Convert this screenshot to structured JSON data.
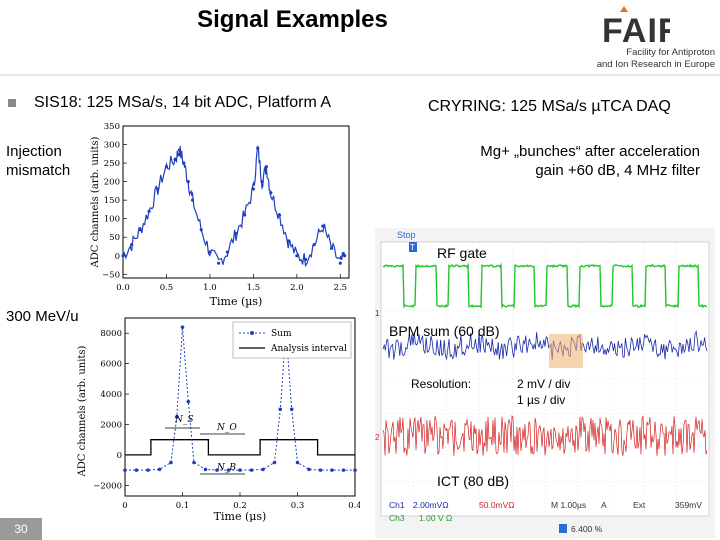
{
  "header": {
    "title": "Signal Examples",
    "logo_text": "FAIR",
    "tagline_1": "Facility for Antiproton",
    "tagline_2": "and Ion Research in Europe"
  },
  "left": {
    "heading": "SIS18: 125 MSa/s, 14 bit ADC, Platform A",
    "label_1a": "Injection",
    "label_1b": "mismatch",
    "label_2": "300 MeV/u"
  },
  "right": {
    "heading": "CRYRING: 125 MSa/s µTCA DAQ",
    "line_1": "Mg+ „bunches“ after acceleration",
    "line_2": "gain +60 dB, 4 MHz filter",
    "scope": {
      "stop": "Stop",
      "rf_gate": "RF gate",
      "bpm_sum": "BPM sum (60 dB)",
      "resolution_label": "Resolution:",
      "resolution_v": "2 mV / div",
      "resolution_t": "1 µs / div",
      "ict": "ICT (80 dB)",
      "ch1": "Ch1",
      "ch1_val": "2.00mVΩ",
      "ch2_val": "50.0mVΩ",
      "m_val": "M 1.00µs",
      "a_val": "A",
      "ext": "Ext",
      "freq": "359mV",
      "ch3": "Ch3",
      "ch3_val": "1.00 V Ω",
      "pct": "6.400 %",
      "marker_1": "1",
      "marker_2": "2",
      "marker_T": "T"
    }
  },
  "page_number": "30",
  "chart_data": [
    {
      "type": "line",
      "title": "",
      "xlabel": "Time (µs)",
      "ylabel": "ADC channels (arb. units)",
      "xlim": [
        0.0,
        2.6
      ],
      "ylim": [
        -60,
        350
      ],
      "xticks": [
        "0.0",
        "0.5",
        "1.0",
        "1.5",
        "2.0",
        "2.5"
      ],
      "yticks": [
        "−50",
        "0",
        "50",
        "100",
        "150",
        "200",
        "250",
        "300",
        "350"
      ],
      "series": [
        {
          "color": "#1f3fbf",
          "x": [
            0.0,
            0.1,
            0.2,
            0.3,
            0.4,
            0.5,
            0.6,
            0.65,
            0.7,
            0.75,
            0.8,
            0.9,
            1.0,
            1.1,
            1.2,
            1.3,
            1.4,
            1.5,
            1.55,
            1.6,
            1.65,
            1.7,
            1.8,
            1.9,
            2.0,
            2.1,
            2.2,
            2.3,
            2.4,
            2.5,
            2.55
          ],
          "values": [
            0,
            30,
            70,
            120,
            180,
            240,
            260,
            285,
            250,
            200,
            150,
            70,
            10,
            -20,
            10,
            60,
            110,
            180,
            290,
            200,
            240,
            170,
            110,
            40,
            0,
            -10,
            30,
            80,
            20,
            -20,
            0
          ]
        }
      ]
    },
    {
      "type": "line",
      "title": "",
      "xlabel": "Time (µs)",
      "ylabel": "ADC channels (arb. units)",
      "xlim": [
        0.0,
        0.4
      ],
      "ylim": [
        -2700,
        9000
      ],
      "xticks": [
        "0",
        "0.1",
        "0.2",
        "0.3",
        "0.4"
      ],
      "yticks": [
        "−2000",
        "0",
        "2000",
        "4000",
        "6000",
        "8000"
      ],
      "legend": {
        "position": "top-right",
        "entries": [
          "Sum",
          "Analysis interval"
        ]
      },
      "annotations": [
        "N_S",
        "N_O",
        "N_B"
      ],
      "series": [
        {
          "name": "Sum",
          "color": "#1f3fbf",
          "x": [
            0.0,
            0.02,
            0.04,
            0.06,
            0.08,
            0.09,
            0.1,
            0.11,
            0.12,
            0.14,
            0.16,
            0.18,
            0.2,
            0.22,
            0.24,
            0.26,
            0.27,
            0.28,
            0.29,
            0.3,
            0.32,
            0.34,
            0.36,
            0.38,
            0.4
          ],
          "values": [
            -1000,
            -1000,
            -1000,
            -950,
            -500,
            2500,
            8400,
            3500,
            -500,
            -950,
            -1000,
            -1000,
            -1000,
            -1000,
            -950,
            -500,
            3000,
            8200,
            3000,
            -500,
            -950,
            -1000,
            -1000,
            -1000,
            -1000
          ]
        },
        {
          "name": "Analysis interval",
          "color": "#000000",
          "x": [
            0.0,
            0.045,
            0.045,
            0.145,
            0.145,
            0.235,
            0.235,
            0.335,
            0.335,
            0.4
          ],
          "values": [
            0,
            0,
            1000,
            1000,
            0,
            0,
            1000,
            1000,
            0,
            0
          ]
        }
      ]
    }
  ]
}
